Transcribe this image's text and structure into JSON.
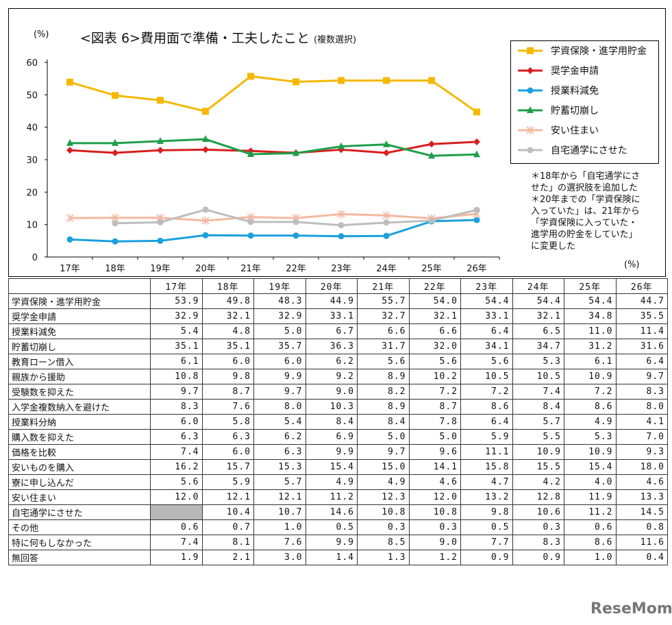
{
  "title": "<図表 6>費用面で準備・工夫したこと",
  "subtitle": "(複数選択)",
  "y_unit": "(%)",
  "table_unit": "(%)",
  "note": [
    "＊18年から「自宅通学にさ",
    "せた」の選択肢を追加した",
    "＊20年までの「学資保険に",
    "入っていた」は、21年から",
    "「学資保険に入っていた・",
    "進学用の貯金をしていた」",
    "に変更した"
  ],
  "logo": "ReseMom",
  "chart_data": {
    "type": "line",
    "categories": [
      "17年",
      "18年",
      "19年",
      "20年",
      "21年",
      "22年",
      "23年",
      "24年",
      "25年",
      "26年"
    ],
    "yticks": [
      0,
      10,
      20,
      30,
      40,
      50,
      60
    ],
    "ylim": [
      0,
      60
    ],
    "series": [
      {
        "name": "学資保険・進学用貯金",
        "color": "#f5b800",
        "marker": "square",
        "values": [
          53.9,
          49.8,
          48.3,
          44.9,
          55.7,
          54.0,
          54.4,
          54.4,
          54.4,
          44.7
        ]
      },
      {
        "name": "奨学金申請",
        "color": "#d81e1e",
        "marker": "diamond",
        "values": [
          32.9,
          32.1,
          32.9,
          33.1,
          32.7,
          32.1,
          33.1,
          32.1,
          34.8,
          35.5
        ]
      },
      {
        "name": "授業料減免",
        "color": "#1aa0dc",
        "marker": "circle",
        "values": [
          5.4,
          4.8,
          5.0,
          6.7,
          6.6,
          6.6,
          6.4,
          6.5,
          11.0,
          11.4
        ]
      },
      {
        "name": "貯蓄切崩し",
        "color": "#1e9e4a",
        "marker": "triangle",
        "values": [
          35.1,
          35.1,
          35.7,
          36.3,
          31.7,
          32.0,
          34.1,
          34.7,
          31.2,
          31.6
        ]
      },
      {
        "name": "安い住まい",
        "color": "#f4b8a0",
        "marker": "star",
        "values": [
          12.0,
          12.1,
          12.1,
          11.2,
          12.3,
          12.0,
          13.2,
          12.8,
          11.9,
          13.3
        ]
      },
      {
        "name": "自宅通学にさせた",
        "color": "#bdbdbd",
        "marker": "circle",
        "values": [
          null,
          10.4,
          10.7,
          14.6,
          10.8,
          10.8,
          9.8,
          10.6,
          11.2,
          14.5
        ]
      }
    ]
  },
  "table": {
    "headers": [
      "17年",
      "18年",
      "19年",
      "20年",
      "21年",
      "22年",
      "23年",
      "24年",
      "25年",
      "26年"
    ],
    "rows": [
      {
        "label": "学資保険・進学用貯金",
        "values": [
          "53.9",
          "49.8",
          "48.3",
          "44.9",
          "55.7",
          "54.0",
          "54.4",
          "54.4",
          "54.4",
          "44.7"
        ]
      },
      {
        "label": "奨学金申請",
        "values": [
          "32.9",
          "32.1",
          "32.9",
          "33.1",
          "32.7",
          "32.1",
          "33.1",
          "32.1",
          "34.8",
          "35.5"
        ]
      },
      {
        "label": "授業料減免",
        "values": [
          "5.4",
          "4.8",
          "5.0",
          "6.7",
          "6.6",
          "6.6",
          "6.4",
          "6.5",
          "11.0",
          "11.4"
        ]
      },
      {
        "label": "貯蓄切崩し",
        "values": [
          "35.1",
          "35.1",
          "35.7",
          "36.3",
          "31.7",
          "32.0",
          "34.1",
          "34.7",
          "31.2",
          "31.6"
        ]
      },
      {
        "label": "教育ローン借入",
        "values": [
          "6.1",
          "6.0",
          "6.0",
          "6.2",
          "5.6",
          "5.6",
          "5.6",
          "5.3",
          "6.1",
          "6.4"
        ]
      },
      {
        "label": "親族から援助",
        "values": [
          "10.8",
          "9.8",
          "9.9",
          "9.2",
          "8.9",
          "10.2",
          "10.5",
          "10.5",
          "10.9",
          "9.7"
        ]
      },
      {
        "label": "受験数を抑えた",
        "values": [
          "9.7",
          "8.7",
          "9.7",
          "9.0",
          "8.2",
          "7.2",
          "7.2",
          "7.4",
          "7.2",
          "8.3"
        ]
      },
      {
        "label": "入学金複数納入を避けた",
        "values": [
          "8.3",
          "7.6",
          "8.0",
          "10.3",
          "8.9",
          "8.7",
          "8.6",
          "8.4",
          "8.6",
          "8.0"
        ]
      },
      {
        "label": "授業料分納",
        "values": [
          "6.0",
          "5.8",
          "5.4",
          "8.4",
          "8.4",
          "7.8",
          "6.4",
          "5.7",
          "4.9",
          "4.1"
        ]
      },
      {
        "label": "購入数を抑えた",
        "values": [
          "6.3",
          "6.3",
          "6.2",
          "6.9",
          "5.0",
          "5.0",
          "5.9",
          "5.5",
          "5.3",
          "7.0"
        ]
      },
      {
        "label": "価格を比較",
        "values": [
          "7.4",
          "6.0",
          "6.3",
          "9.9",
          "9.7",
          "9.6",
          "11.1",
          "10.9",
          "10.9",
          "9.3"
        ]
      },
      {
        "label": "安いものを購入",
        "values": [
          "16.2",
          "15.7",
          "15.3",
          "15.4",
          "15.0",
          "14.1",
          "15.8",
          "15.5",
          "15.4",
          "18.0"
        ]
      },
      {
        "label": "寮に申し込んだ",
        "values": [
          "5.6",
          "5.9",
          "5.7",
          "4.9",
          "4.9",
          "4.6",
          "4.7",
          "4.2",
          "4.0",
          "4.6"
        ]
      },
      {
        "label": "安い住まい",
        "values": [
          "12.0",
          "12.1",
          "12.1",
          "11.2",
          "12.3",
          "12.0",
          "13.2",
          "12.8",
          "11.9",
          "13.3"
        ]
      },
      {
        "label": "自宅通学にさせた",
        "values": [
          "",
          "10.4",
          "10.7",
          "14.6",
          "10.8",
          "10.8",
          "9.8",
          "10.6",
          "11.2",
          "14.5"
        ]
      },
      {
        "label": "その他",
        "values": [
          "0.6",
          "0.7",
          "1.0",
          "0.5",
          "0.3",
          "0.3",
          "0.5",
          "0.3",
          "0.6",
          "0.8"
        ]
      },
      {
        "label": "特に何もしなかった",
        "values": [
          "7.4",
          "8.1",
          "7.6",
          "9.9",
          "8.5",
          "9.0",
          "7.7",
          "8.3",
          "8.6",
          "11.6"
        ]
      },
      {
        "label": "無回答",
        "values": [
          "1.9",
          "2.1",
          "3.0",
          "1.4",
          "1.3",
          "1.2",
          "0.9",
          "0.9",
          "1.0",
          "0.4"
        ]
      }
    ]
  }
}
